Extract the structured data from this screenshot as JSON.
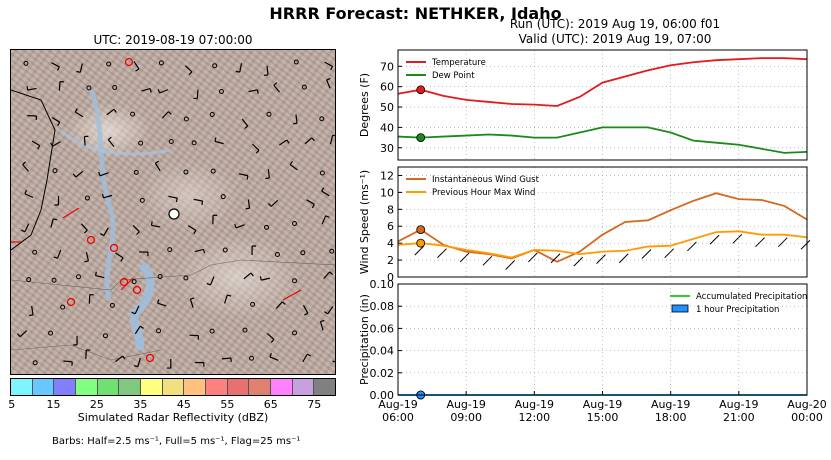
{
  "main_title": "HRRR Forecast: NETHKER, Idaho",
  "map_title": "UTC: 2019-08-19 07:00:00",
  "run_line1": "Run (UTC): 2019 Aug 19, 06:00 f01",
  "run_line2": "Valid (UTC): 2019 Aug 19, 07:00",
  "colorbar": {
    "label": "Simulated Radar Reflectivity (dBZ)",
    "ticks": [
      "5",
      "15",
      "25",
      "35",
      "45",
      "55",
      "65",
      "75"
    ],
    "colors": [
      "#7ef4ff",
      "#66c8ff",
      "#8080ff",
      "#80ff80",
      "#70e070",
      "#80c880",
      "#ffff80",
      "#f0e080",
      "#ffc080",
      "#ff8080",
      "#e87070",
      "#e08070",
      "#ff80ff",
      "#c8a0e0",
      "#808080"
    ]
  },
  "barbs_note": "Barbs: Half=2.5 ms⁻¹, Full=5 ms⁻¹, Flag=25 ms⁻¹",
  "chart_data": [
    {
      "type": "line",
      "ylabel": "Degrees (F)",
      "ylim": [
        24,
        78
      ],
      "yticks": [
        "30",
        "40",
        "50",
        "60",
        "70"
      ],
      "xlim": [
        0,
        18
      ],
      "x": [
        0,
        1,
        2,
        3,
        4,
        5,
        6,
        7,
        8,
        9,
        10,
        11,
        12,
        13,
        14,
        15,
        16,
        17,
        18
      ],
      "grid": true,
      "legend": "top-left",
      "series": [
        {
          "name": "Temperature",
          "color": "#e41a1c",
          "values": [
            56.5,
            58.5,
            55.5,
            53.5,
            52.5,
            51.5,
            51.2,
            50.5,
            55,
            62,
            65,
            68,
            70.5,
            72,
            73,
            73.5,
            74,
            74,
            73.5
          ]
        },
        {
          "name": "Dew Point",
          "color": "#1a8a1a",
          "values": [
            35.5,
            35,
            35.5,
            36,
            36.5,
            36,
            35,
            35,
            37.5,
            40,
            40,
            40,
            37.5,
            33.5,
            32.5,
            31.5,
            29.5,
            27.5,
            28
          ]
        }
      ],
      "marker_index": 1
    },
    {
      "type": "line",
      "ylabel": "Wind Speed (ms⁻¹)",
      "ylim": [
        0,
        13
      ],
      "yticks": [
        "0",
        "2",
        "4",
        "6",
        "8",
        "10",
        "12"
      ],
      "xlim": [
        0,
        18
      ],
      "x": [
        0,
        1,
        2,
        3,
        4,
        5,
        6,
        7,
        8,
        9,
        10,
        11,
        12,
        13,
        14,
        15,
        16,
        17,
        18
      ],
      "grid": true,
      "legend": "top-left",
      "series": [
        {
          "name": "Instantaneous Wind Gust",
          "color": "#d2691e",
          "values": [
            4.2,
            5.6,
            3.8,
            3.0,
            2.7,
            2.2,
            3.2,
            1.8,
            3.0,
            5.0,
            6.5,
            6.7,
            7.9,
            9.0,
            9.9,
            9.2,
            9.1,
            8.4,
            6.8
          ]
        },
        {
          "name": "Previous Hour Max Wind",
          "color": "#ff9a00",
          "values": [
            3.8,
            4.0,
            3.7,
            3.2,
            2.8,
            2.3,
            3.2,
            3.1,
            2.7,
            3.0,
            3.1,
            3.6,
            3.7,
            4.5,
            5.3,
            5.4,
            5.0,
            5.0,
            4.7
          ]
        }
      ],
      "marker_index": 1
    },
    {
      "type": "line",
      "ylabel": "Precipitation (in)",
      "ylim": [
        0,
        0.1
      ],
      "yticks": [
        "0.00",
        "0.02",
        "0.04",
        "0.06",
        "0.08",
        "0.10"
      ],
      "xlim": [
        0,
        18
      ],
      "x": [
        0,
        1,
        2,
        3,
        4,
        5,
        6,
        7,
        8,
        9,
        10,
        11,
        12,
        13,
        14,
        15,
        16,
        17,
        18
      ],
      "grid": true,
      "legend": "top-right",
      "series": [
        {
          "name": "Accumulated Precipitation",
          "color": "#32cd32",
          "values": [
            0,
            0,
            0,
            0,
            0,
            0,
            0,
            0,
            0,
            0,
            0,
            0,
            0,
            0,
            0,
            0,
            0,
            0,
            0
          ]
        },
        {
          "name": "1 hour Precipitation",
          "color": "#1e90ff",
          "values": [
            0,
            0,
            0,
            0,
            0,
            0,
            0,
            0,
            0,
            0,
            0,
            0,
            0,
            0,
            0,
            0,
            0,
            0,
            0
          ]
        }
      ],
      "marker_index": 1,
      "xticks": [
        [
          "Aug-19",
          "06:00"
        ],
        [
          "Aug-19",
          "09:00"
        ],
        [
          "Aug-19",
          "12:00"
        ],
        [
          "Aug-19",
          "15:00"
        ],
        [
          "Aug-19",
          "18:00"
        ],
        [
          "Aug-19",
          "21:00"
        ],
        [
          "Aug-20",
          "00:00"
        ]
      ]
    }
  ]
}
